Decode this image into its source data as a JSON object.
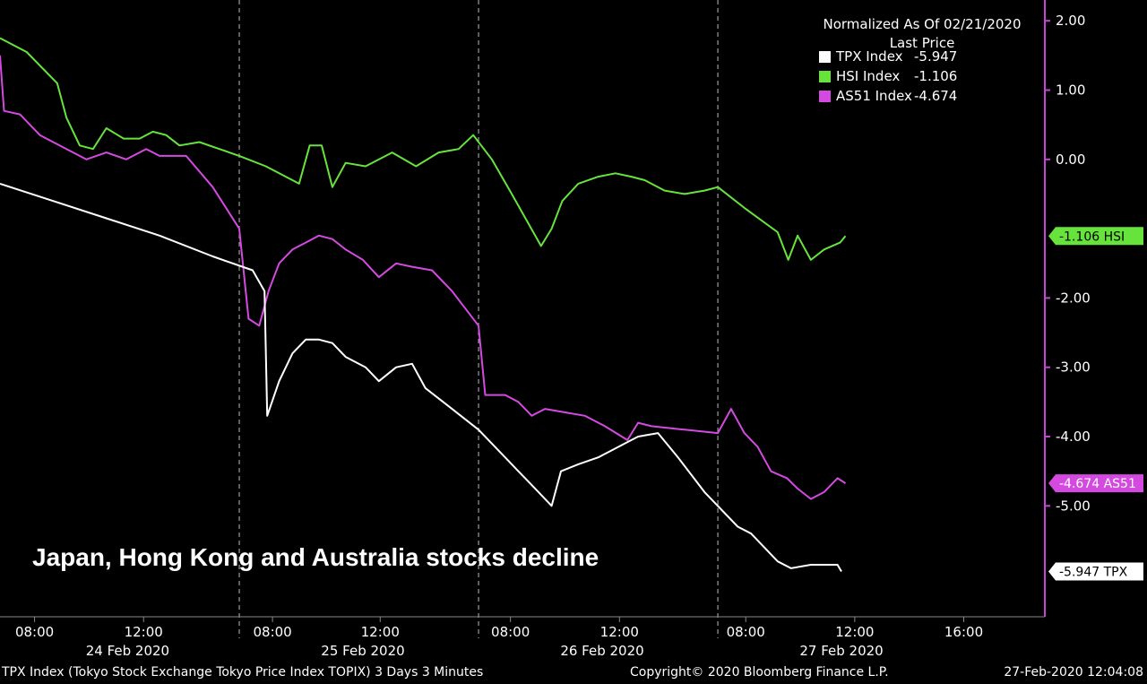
{
  "chart_data": {
    "type": "line",
    "headline": "Japan, Hong Kong and Australia stocks decline",
    "legend": {
      "title": "Normalized As Of 02/21/2020",
      "subtitle": "Last Price",
      "entries": [
        {
          "name": "TPX Index",
          "value": "-5.947",
          "color": "#ffffff"
        },
        {
          "name": "HSI Index",
          "value": "-1.106",
          "color": "#66e43c"
        },
        {
          "name": "AS51 Index",
          "value": "-4.674",
          "color": "#d44ae0"
        }
      ]
    },
    "ylim": [
      -6.6,
      2.3
    ],
    "yticks": [
      {
        "v": 2,
        "label": "2.00"
      },
      {
        "v": 1,
        "label": "1.00"
      },
      {
        "v": 0,
        "label": "0.00"
      },
      {
        "v": -2,
        "label": "-2.00"
      },
      {
        "v": -3,
        "label": "-3.00"
      },
      {
        "v": -4,
        "label": "-4.00"
      },
      {
        "v": -5,
        "label": "-5.00"
      }
    ],
    "xlim": [
      0,
      78.6
    ],
    "xticks": [
      {
        "t": 2.6,
        "label": "08:00"
      },
      {
        "t": 10.8,
        "label": "12:00"
      },
      {
        "t": 20.5,
        "label": "08:00"
      },
      {
        "t": 28.6,
        "label": "12:00"
      },
      {
        "t": 38.4,
        "label": "08:00"
      },
      {
        "t": 46.6,
        "label": "12:00"
      },
      {
        "t": 56.1,
        "label": "08:00"
      },
      {
        "t": 64.3,
        "label": "12:00"
      },
      {
        "t": 72.5,
        "label": "16:00"
      }
    ],
    "dates": [
      {
        "t": 9.6,
        "label": "24 Feb 2020"
      },
      {
        "t": 27.3,
        "label": "25 Feb 2020"
      },
      {
        "t": 45.3,
        "label": "26 Feb 2020"
      },
      {
        "t": 63.3,
        "label": "27 Feb 2020"
      }
    ],
    "day_separators": [
      18.0,
      36.0,
      54.0
    ],
    "series": [
      {
        "name": "HSI Index",
        "color": "#66e43c",
        "tag": "-1.106 HSI",
        "last": -1.106,
        "points": [
          [
            0,
            1.75
          ],
          [
            2,
            1.55
          ],
          [
            4.3,
            1.1
          ],
          [
            5,
            0.6
          ],
          [
            6,
            0.2
          ],
          [
            7,
            0.15
          ],
          [
            8,
            0.45
          ],
          [
            9.3,
            0.3
          ],
          [
            10.5,
            0.3
          ],
          [
            11.5,
            0.4
          ],
          [
            12.5,
            0.35
          ],
          [
            13.5,
            0.2
          ],
          [
            15,
            0.25
          ],
          [
            16.5,
            0.15
          ],
          [
            18,
            0.05
          ],
          [
            20,
            -0.1
          ],
          [
            22.5,
            -0.35
          ],
          [
            23.3,
            0.2
          ],
          [
            24.2,
            0.2
          ],
          [
            25,
            -0.4
          ],
          [
            26,
            -0.05
          ],
          [
            27.5,
            -0.1
          ],
          [
            29.5,
            0.1
          ],
          [
            31.3,
            -0.1
          ],
          [
            33,
            0.1
          ],
          [
            34.5,
            0.15
          ],
          [
            35.6,
            0.35
          ],
          [
            37,
            0
          ],
          [
            38.5,
            -0.5
          ],
          [
            40.7,
            -1.25
          ],
          [
            41.5,
            -1.0
          ],
          [
            42.3,
            -0.6
          ],
          [
            43.5,
            -0.35
          ],
          [
            45,
            -0.25
          ],
          [
            46.3,
            -0.2
          ],
          [
            47.5,
            -0.25
          ],
          [
            48.5,
            -0.3
          ],
          [
            50,
            -0.45
          ],
          [
            51.5,
            -0.5
          ],
          [
            53,
            -0.45
          ],
          [
            54,
            -0.4
          ],
          [
            56,
            -0.7
          ],
          [
            58.5,
            -1.05
          ],
          [
            59.3,
            -1.45
          ],
          [
            60,
            -1.1
          ],
          [
            61,
            -1.45
          ],
          [
            62,
            -1.3
          ],
          [
            63.2,
            -1.2
          ],
          [
            63.6,
            -1.106
          ]
        ]
      },
      {
        "name": "AS51 Index",
        "color": "#d44ae0",
        "tag": "-4.674 AS51",
        "last": -4.674,
        "points": [
          [
            0,
            1.5
          ],
          [
            0.3,
            0.7
          ],
          [
            1.5,
            0.65
          ],
          [
            3,
            0.35
          ],
          [
            5,
            0.15
          ],
          [
            6.5,
            0.0
          ],
          [
            8,
            0.1
          ],
          [
            9.5,
            0.0
          ],
          [
            11,
            0.15
          ],
          [
            12,
            0.05
          ],
          [
            14,
            0.05
          ],
          [
            16,
            -0.4
          ],
          [
            18,
            -1.0
          ],
          [
            18.7,
            -2.3
          ],
          [
            19.5,
            -2.4
          ],
          [
            20.2,
            -1.9
          ],
          [
            21,
            -1.5
          ],
          [
            22,
            -1.3
          ],
          [
            23,
            -1.2
          ],
          [
            24,
            -1.1
          ],
          [
            25,
            -1.15
          ],
          [
            26,
            -1.3
          ],
          [
            27.3,
            -1.45
          ],
          [
            28.5,
            -1.7
          ],
          [
            29.8,
            -1.5
          ],
          [
            31,
            -1.55
          ],
          [
            32.5,
            -1.6
          ],
          [
            34,
            -1.9
          ],
          [
            36,
            -2.4
          ],
          [
            36.5,
            -3.4
          ],
          [
            38,
            -3.4
          ],
          [
            39,
            -3.5
          ],
          [
            40,
            -3.7
          ],
          [
            41,
            -3.6
          ],
          [
            42.5,
            -3.65
          ],
          [
            44,
            -3.7
          ],
          [
            45.5,
            -3.85
          ],
          [
            47.2,
            -4.05
          ],
          [
            48,
            -3.8
          ],
          [
            49,
            -3.85
          ],
          [
            51.5,
            -3.9
          ],
          [
            54,
            -3.95
          ],
          [
            55,
            -3.6
          ],
          [
            56,
            -3.95
          ],
          [
            57,
            -4.15
          ],
          [
            58,
            -4.5
          ],
          [
            59.2,
            -4.6
          ],
          [
            60,
            -4.75
          ],
          [
            61,
            -4.9
          ],
          [
            62,
            -4.8
          ],
          [
            63,
            -4.6
          ],
          [
            63.6,
            -4.674
          ]
        ]
      },
      {
        "name": "TPX Index",
        "color": "#ffffff",
        "tag": "-5.947 TPX",
        "last": -5.947,
        "points": [
          [
            0,
            -0.35
          ],
          [
            4,
            -0.6
          ],
          [
            8,
            -0.85
          ],
          [
            12,
            -1.1
          ],
          [
            16,
            -1.4
          ],
          [
            19,
            -1.6
          ],
          [
            19.9,
            -1.9
          ],
          [
            20.1,
            -3.7
          ],
          [
            21,
            -3.2
          ],
          [
            22,
            -2.8
          ],
          [
            23,
            -2.6
          ],
          [
            24,
            -2.6
          ],
          [
            25,
            -2.65
          ],
          [
            26,
            -2.85
          ],
          [
            27.5,
            -3.0
          ],
          [
            28.5,
            -3.2
          ],
          [
            29.8,
            -3.0
          ],
          [
            31,
            -2.95
          ],
          [
            32,
            -3.3
          ],
          [
            34,
            -3.6
          ],
          [
            36,
            -3.9
          ],
          [
            38,
            -4.3
          ],
          [
            39,
            -4.5
          ],
          [
            40,
            -4.7
          ],
          [
            41.5,
            -5.0
          ],
          [
            42.2,
            -4.5
          ],
          [
            43.5,
            -4.4
          ],
          [
            45,
            -4.3
          ],
          [
            46,
            -4.2
          ],
          [
            47,
            -4.1
          ],
          [
            48,
            -4.0
          ],
          [
            49.5,
            -3.95
          ],
          [
            51,
            -4.3
          ],
          [
            53,
            -4.8
          ],
          [
            55.5,
            -5.3
          ],
          [
            56.5,
            -5.4
          ],
          [
            57.5,
            -5.6
          ],
          [
            58.5,
            -5.8
          ],
          [
            59.5,
            -5.9
          ],
          [
            61,
            -5.85
          ],
          [
            63,
            -5.85
          ],
          [
            63.3,
            -5.947
          ]
        ]
      }
    ],
    "footer_left": "TPX Index (Tokyo Stock Exchange Tokyo Price Index TOPIX) 3 Days 3 Minutes",
    "footer_center": "Copyright© 2020 Bloomberg Finance L.P.",
    "footer_right": "27-Feb-2020 12:04:08"
  }
}
